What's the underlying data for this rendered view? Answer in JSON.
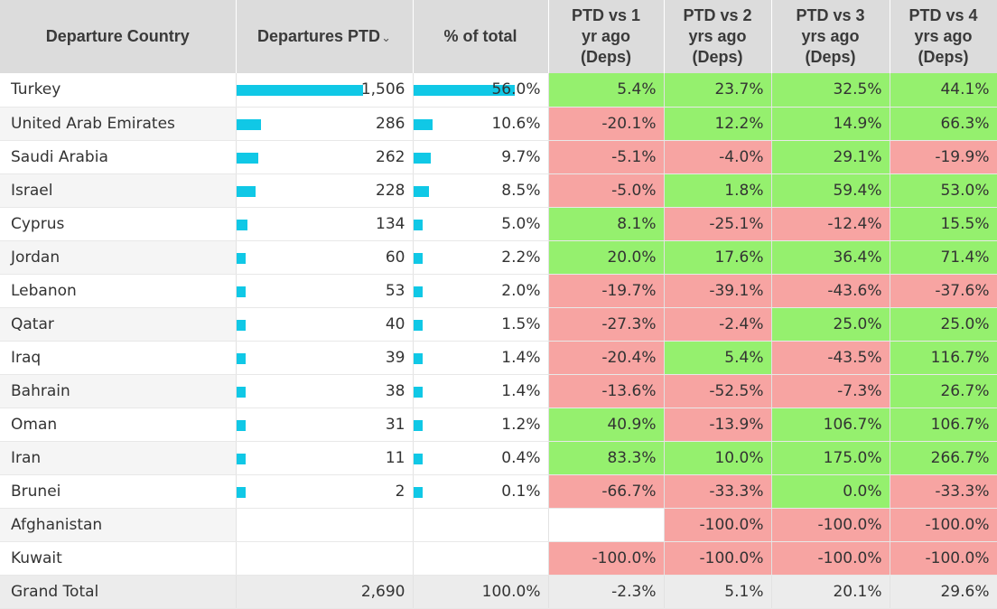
{
  "colors": {
    "bar": "#10c8e6",
    "positive": "#95f06e",
    "negative": "#f7a4a2",
    "header": "#dcdcdc"
  },
  "header": {
    "country": "Departure Country",
    "departures": "Departures PTD",
    "sort_icon": "⌄",
    "pct_total": "% of total",
    "vs1": [
      "PTD vs 1",
      "yr ago",
      "(Deps)"
    ],
    "vs2": [
      "PTD vs 2",
      "yrs ago",
      "(Deps)"
    ],
    "vs3": [
      "PTD vs 3",
      "yrs ago",
      "(Deps)"
    ],
    "vs4": [
      "PTD vs 4",
      "yrs ago",
      "(Deps)"
    ]
  },
  "rows": [
    {
      "country": "Turkey",
      "departures": "1,506",
      "dep_value": 1506,
      "pct": "56.0%",
      "pct_value": 56.0,
      "vs1": "5.4%",
      "vs2": "23.7%",
      "vs3": "32.5%",
      "vs4": "44.1%"
    },
    {
      "country": "United Arab Emirates",
      "departures": "286",
      "dep_value": 286,
      "pct": "10.6%",
      "pct_value": 10.6,
      "vs1": "-20.1%",
      "vs2": "12.2%",
      "vs3": "14.9%",
      "vs4": "66.3%"
    },
    {
      "country": "Saudi Arabia",
      "departures": "262",
      "dep_value": 262,
      "pct": "9.7%",
      "pct_value": 9.7,
      "vs1": "-5.1%",
      "vs2": "-4.0%",
      "vs3": "29.1%",
      "vs4": "-19.9%"
    },
    {
      "country": "Israel",
      "departures": "228",
      "dep_value": 228,
      "pct": "8.5%",
      "pct_value": 8.5,
      "vs1": "-5.0%",
      "vs2": "1.8%",
      "vs3": "59.4%",
      "vs4": "53.0%"
    },
    {
      "country": "Cyprus",
      "departures": "134",
      "dep_value": 134,
      "pct": "5.0%",
      "pct_value": 5.0,
      "vs1": "8.1%",
      "vs2": "-25.1%",
      "vs3": "-12.4%",
      "vs4": "15.5%"
    },
    {
      "country": "Jordan",
      "departures": "60",
      "dep_value": 60,
      "pct": "2.2%",
      "pct_value": 2.2,
      "vs1": "20.0%",
      "vs2": "17.6%",
      "vs3": "36.4%",
      "vs4": "71.4%"
    },
    {
      "country": "Lebanon",
      "departures": "53",
      "dep_value": 53,
      "pct": "2.0%",
      "pct_value": 2.0,
      "vs1": "-19.7%",
      "vs2": "-39.1%",
      "vs3": "-43.6%",
      "vs4": "-37.6%"
    },
    {
      "country": "Qatar",
      "departures": "40",
      "dep_value": 40,
      "pct": "1.5%",
      "pct_value": 1.5,
      "vs1": "-27.3%",
      "vs2": "-2.4%",
      "vs3": "25.0%",
      "vs4": "25.0%"
    },
    {
      "country": "Iraq",
      "departures": "39",
      "dep_value": 39,
      "pct": "1.4%",
      "pct_value": 1.4,
      "vs1": "-20.4%",
      "vs2": "5.4%",
      "vs3": "-43.5%",
      "vs4": "116.7%"
    },
    {
      "country": "Bahrain",
      "departures": "38",
      "dep_value": 38,
      "pct": "1.4%",
      "pct_value": 1.4,
      "vs1": "-13.6%",
      "vs2": "-52.5%",
      "vs3": "-7.3%",
      "vs4": "26.7%"
    },
    {
      "country": "Oman",
      "departures": "31",
      "dep_value": 31,
      "pct": "1.2%",
      "pct_value": 1.2,
      "vs1": "40.9%",
      "vs2": "-13.9%",
      "vs3": "106.7%",
      "vs4": "106.7%"
    },
    {
      "country": "Iran",
      "departures": "11",
      "dep_value": 11,
      "pct": "0.4%",
      "pct_value": 0.4,
      "vs1": "83.3%",
      "vs2": "10.0%",
      "vs3": "175.0%",
      "vs4": "266.7%"
    },
    {
      "country": "Brunei",
      "departures": "2",
      "dep_value": 2,
      "pct": "0.1%",
      "pct_value": 0.1,
      "vs1": "-66.7%",
      "vs2": "-33.3%",
      "vs3": "0.0%",
      "vs4": "-33.3%"
    },
    {
      "country": "Afghanistan",
      "departures": "",
      "dep_value": null,
      "pct": "",
      "pct_value": null,
      "vs1": "",
      "vs2": "-100.0%",
      "vs3": "-100.0%",
      "vs4": "-100.0%"
    },
    {
      "country": "Kuwait",
      "departures": "",
      "dep_value": null,
      "pct": "",
      "pct_value": null,
      "vs1": "-100.0%",
      "vs2": "-100.0%",
      "vs3": "-100.0%",
      "vs4": "-100.0%"
    }
  ],
  "total": {
    "country": "Grand Total",
    "departures": "2,690",
    "pct": "100.0%",
    "vs1": "-2.3%",
    "vs2": "5.1%",
    "vs3": "20.1%",
    "vs4": "29.6%"
  }
}
